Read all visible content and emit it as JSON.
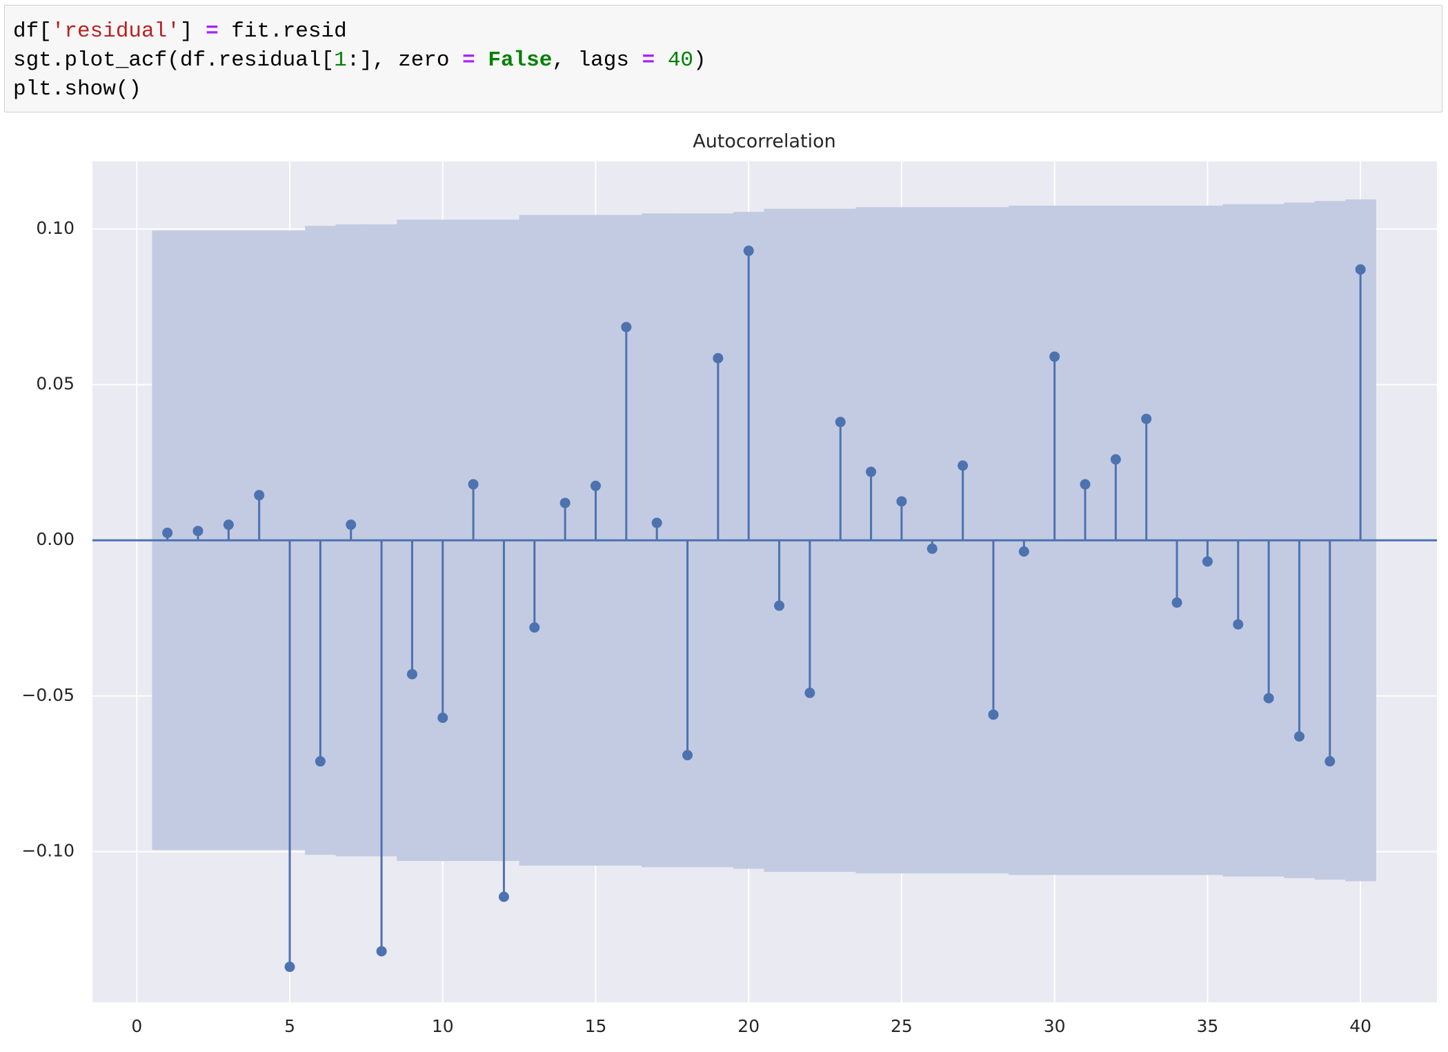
{
  "code": {
    "lines": [
      [
        {
          "text": "df[",
          "color": "#000000"
        },
        {
          "text": "'residual'",
          "color": "#ba2121"
        },
        {
          "text": "] ",
          "color": "#000000"
        },
        {
          "text": "=",
          "color": "#aa22ff",
          "bold": true
        },
        {
          "text": " fit.resid",
          "color": "#000000"
        }
      ],
      [
        {
          "text": "sgt.plot_acf(df.residual[",
          "color": "#000000"
        },
        {
          "text": "1",
          "color": "#008000"
        },
        {
          "text": ":], zero ",
          "color": "#000000"
        },
        {
          "text": "=",
          "color": "#aa22ff",
          "bold": true
        },
        {
          "text": " ",
          "color": "#000000"
        },
        {
          "text": "False",
          "color": "#008000",
          "bold": true
        },
        {
          "text": ", lags ",
          "color": "#000000"
        },
        {
          "text": "=",
          "color": "#aa22ff",
          "bold": true
        },
        {
          "text": " ",
          "color": "#000000"
        },
        {
          "text": "40",
          "color": "#008000"
        },
        {
          "text": ")",
          "color": "#000000"
        }
      ],
      [
        {
          "text": "plt.show()",
          "color": "#000000"
        }
      ]
    ]
  },
  "chart_data": {
    "type": "stem",
    "title": "Autocorrelation",
    "lags": [
      1,
      2,
      3,
      4,
      5,
      6,
      7,
      8,
      9,
      10,
      11,
      12,
      13,
      14,
      15,
      16,
      17,
      18,
      19,
      20,
      21,
      22,
      23,
      24,
      25,
      26,
      27,
      28,
      29,
      30,
      31,
      32,
      33,
      34,
      35,
      36,
      37,
      38,
      39,
      40
    ],
    "values": [
      0.0024,
      0.003,
      0.005,
      0.0145,
      -0.137,
      -0.071,
      0.005,
      -0.132,
      -0.043,
      -0.057,
      0.018,
      -0.1145,
      -0.028,
      0.012,
      0.0175,
      0.0685,
      0.0056,
      -0.069,
      0.0585,
      0.093,
      -0.021,
      -0.049,
      0.038,
      0.022,
      0.0125,
      -0.0027,
      0.024,
      -0.056,
      -0.0036,
      0.059,
      0.018,
      0.026,
      0.039,
      -0.02,
      -0.0068,
      -0.027,
      -0.0507,
      -0.063,
      -0.071,
      0.087
    ],
    "band_upper": [
      0.0995,
      0.0995,
      0.0995,
      0.0995,
      0.0995,
      0.101,
      0.1015,
      0.1015,
      0.103,
      0.103,
      0.103,
      0.103,
      0.1045,
      0.1045,
      0.1045,
      0.1045,
      0.105,
      0.105,
      0.105,
      0.1055,
      0.1065,
      0.1065,
      0.1065,
      0.107,
      0.107,
      0.107,
      0.107,
      0.107,
      0.1075,
      0.1075,
      0.1075,
      0.1075,
      0.1075,
      0.1075,
      0.1075,
      0.108,
      0.108,
      0.1085,
      0.109,
      0.1095
    ],
    "band_lower": [
      -0.0995,
      -0.0995,
      -0.0995,
      -0.0995,
      -0.0995,
      -0.101,
      -0.1015,
      -0.1015,
      -0.103,
      -0.103,
      -0.103,
      -0.103,
      -0.1045,
      -0.1045,
      -0.1045,
      -0.1045,
      -0.105,
      -0.105,
      -0.105,
      -0.1055,
      -0.1065,
      -0.1065,
      -0.1065,
      -0.107,
      -0.107,
      -0.107,
      -0.107,
      -0.107,
      -0.1075,
      -0.1075,
      -0.1075,
      -0.1075,
      -0.1075,
      -0.1075,
      -0.1075,
      -0.108,
      -0.108,
      -0.1085,
      -0.109,
      -0.1095
    ],
    "color": "#4c72b0",
    "band_color": "#c3cbe2",
    "background": "#eaeaf2",
    "grid": true,
    "xlim": [
      -1.45,
      42.5
    ],
    "ylim": [
      -0.1484,
      0.1217
    ],
    "xticks": [
      0,
      5,
      10,
      15,
      20,
      25,
      30,
      35,
      40
    ],
    "yticks": [
      {
        "value": -0.1,
        "label": "−0.10"
      },
      {
        "value": -0.05,
        "label": "−0.05"
      },
      {
        "value": 0,
        "label": "0.00"
      },
      {
        "value": 0.05,
        "label": "0.05"
      },
      {
        "value": 0.1,
        "label": "0.10"
      }
    ]
  }
}
